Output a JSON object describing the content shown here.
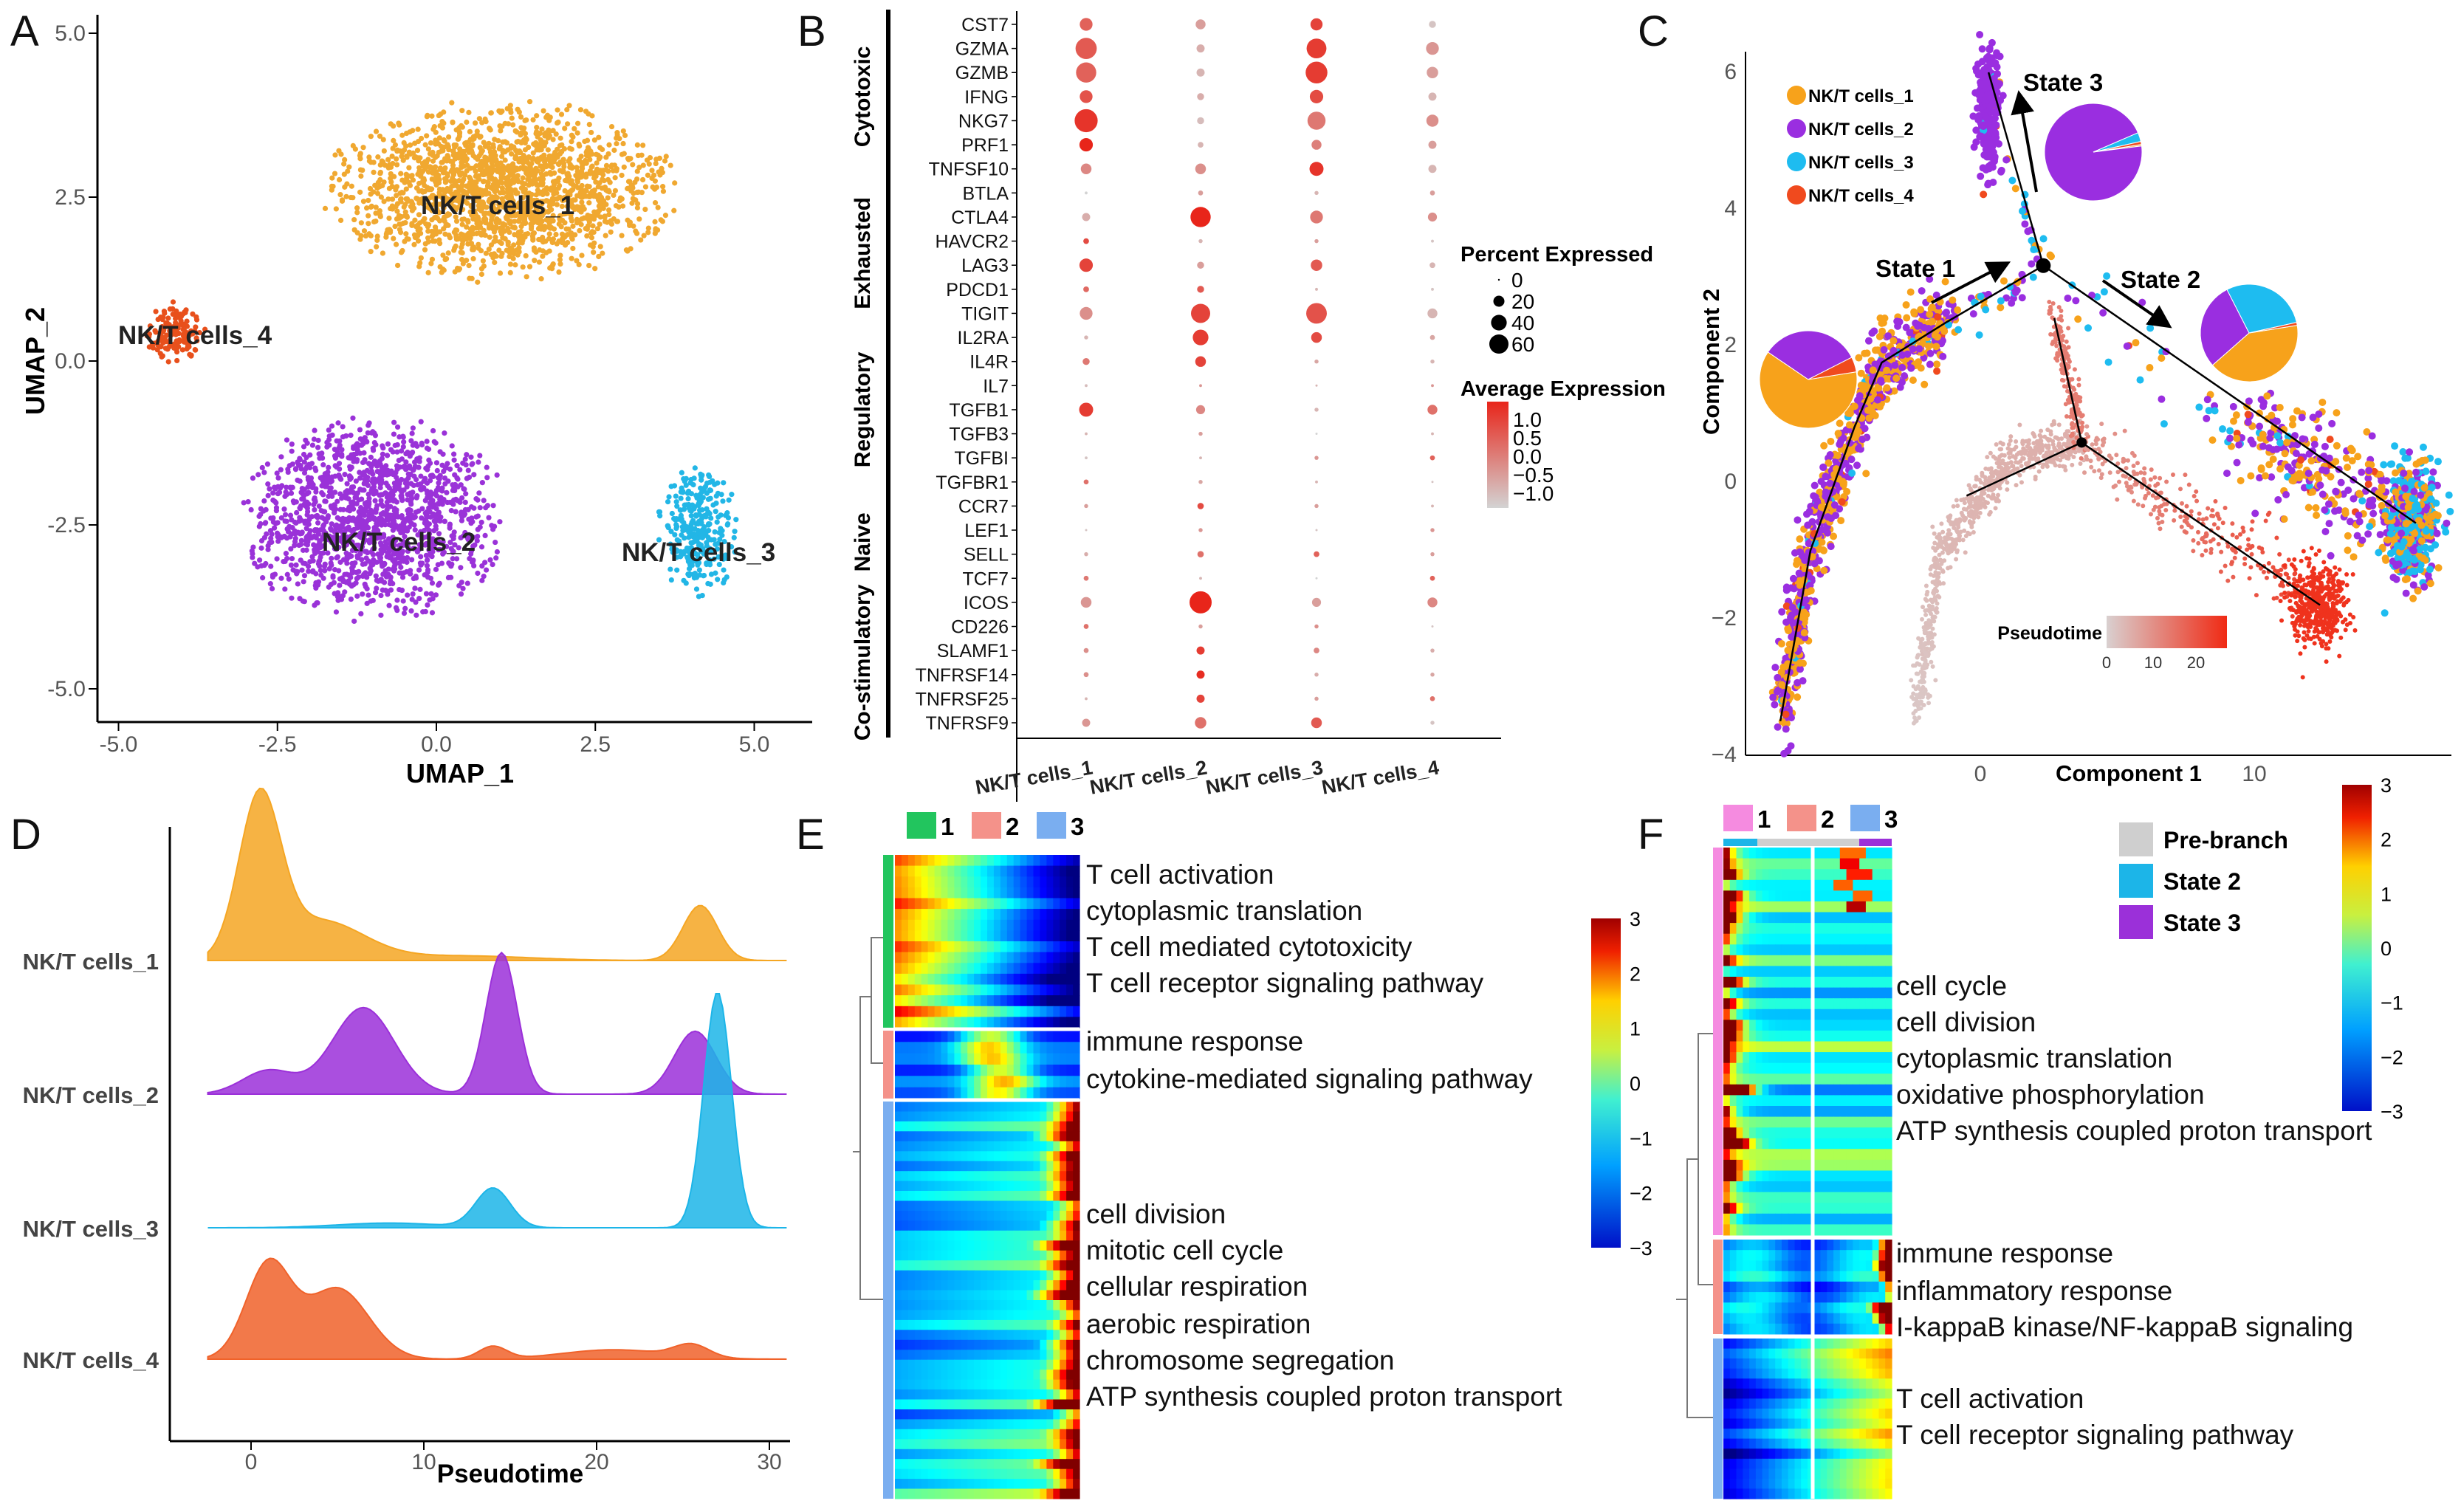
{
  "panel_letters": [
    "A",
    "B",
    "C",
    "D",
    "E",
    "F"
  ],
  "chart_data": [
    {
      "panel": "A",
      "type": "scatter",
      "xlabel": "UMAP_1",
      "ylabel": "UMAP_2",
      "xlim": [
        -5.5,
        5.5
      ],
      "ylim": [
        -5.3,
        5.1
      ],
      "xticks": [
        "-5.0",
        "-2.5",
        "0.0",
        "2.5",
        "5.0"
      ],
      "yticks": [
        "5.0",
        "2.5",
        "0.0",
        "-2.5",
        "-5.0"
      ],
      "clusters": [
        {
          "name": "NK/T cells_1",
          "color": "#f0a830"
        },
        {
          "name": "NK/T cells_2",
          "color": "#9a32d8"
        },
        {
          "name": "NK/T cells_3",
          "color": "#22b6e6"
        },
        {
          "name": "NK/T cells_4",
          "color": "#e8501c"
        }
      ]
    },
    {
      "panel": "B",
      "type": "dot",
      "columns": [
        "NK/T cells_1",
        "NK/T cells_2",
        "NK/T cells_3",
        "NK/T cells_4"
      ],
      "groups": [
        {
          "name": "Cytotoxic",
          "genes": [
            "CST7",
            "GZMA",
            "GZMB",
            "IFNG",
            "NKG7",
            "PRF1",
            "TNFSF10"
          ]
        },
        {
          "name": "Exhausted",
          "genes": [
            "BTLA",
            "CTLA4",
            "HAVCR2",
            "LAG3",
            "PDCD1",
            "TIGIT"
          ]
        },
        {
          "name": "Regulatory",
          "genes": [
            "IL2RA",
            "IL4R",
            "IL7",
            "TGFB1",
            "TGFB3",
            "TGFBI",
            "TGFBR1"
          ]
        },
        {
          "name": "Naive",
          "genes": [
            "CCR7",
            "LEF1",
            "SELL",
            "TCF7"
          ]
        },
        {
          "name": "Co-stimulatory",
          "genes": [
            "ICOS",
            "CD226",
            "SLAMF1",
            "TNFRSF14",
            "TNFRSF25",
            "TNFRSF9"
          ]
        }
      ],
      "percent_expressed": [
        [
          20,
          12,
          18,
          6
        ],
        [
          55,
          8,
          48,
          20
        ],
        [
          50,
          8,
          58,
          16
        ],
        [
          20,
          6,
          22,
          8
        ],
        [
          65,
          6,
          40,
          18
        ],
        [
          22,
          4,
          12,
          8
        ],
        [
          14,
          14,
          24,
          8
        ],
        [
          1,
          3,
          2,
          3
        ],
        [
          8,
          50,
          20,
          10
        ],
        [
          4,
          2,
          2,
          1
        ],
        [
          22,
          6,
          16,
          4
        ],
        [
          4,
          6,
          1,
          1
        ],
        [
          20,
          45,
          52,
          12
        ],
        [
          2,
          30,
          14,
          3
        ],
        [
          6,
          14,
          2,
          2
        ],
        [
          1,
          1,
          0.5,
          1
        ],
        [
          24,
          10,
          2,
          12
        ],
        [
          1,
          2,
          0,
          1
        ],
        [
          1,
          1,
          2,
          3
        ],
        [
          3,
          2,
          1,
          0.5
        ],
        [
          2,
          5,
          2,
          1
        ],
        [
          0.5,
          2,
          0.5,
          2
        ],
        [
          2,
          5,
          4,
          2
        ],
        [
          3,
          1,
          0,
          3
        ],
        [
          14,
          60,
          10,
          12
        ],
        [
          3,
          2,
          2,
          0.5
        ],
        [
          3,
          8,
          4,
          2
        ],
        [
          3,
          8,
          2,
          2
        ],
        [
          1,
          8,
          2,
          3
        ],
        [
          8,
          16,
          14,
          2
        ]
      ],
      "average_expression": [
        [
          0.5,
          -0.3,
          0.9,
          -0.8
        ],
        [
          0.6,
          -0.5,
          1.0,
          -0.2
        ],
        [
          0.5,
          -0.6,
          1.0,
          -0.3
        ],
        [
          0.7,
          -0.5,
          0.8,
          -0.6
        ],
        [
          1.1,
          -0.7,
          0.2,
          -0.1
        ],
        [
          1.3,
          -0.6,
          0.1,
          -0.3
        ],
        [
          0.0,
          -0.1,
          1.1,
          -0.6
        ],
        [
          -1,
          -0.3,
          -0.6,
          -0.3
        ],
        [
          -0.5,
          1.3,
          0.2,
          -0.1
        ],
        [
          0.8,
          -0.6,
          -0.3,
          -0.8
        ],
        [
          0.9,
          -0.3,
          0.6,
          -0.6
        ],
        [
          0.4,
          0.6,
          -0.6,
          -0.8
        ],
        [
          -0.1,
          0.9,
          0.7,
          -0.6
        ],
        [
          -0.6,
          1.0,
          0.8,
          -0.4
        ],
        [
          0.2,
          0.9,
          -0.4,
          -0.6
        ],
        [
          -0.7,
          -0.2,
          -0.6,
          -0.2
        ],
        [
          1.0,
          0.0,
          -0.6,
          0.3
        ],
        [
          -0.6,
          -0.3,
          -1,
          -0.6
        ],
        [
          -0.8,
          -0.6,
          -0.2,
          0.5
        ],
        [
          0.3,
          -0.4,
          -0.6,
          -0.8
        ],
        [
          -0.3,
          0.8,
          -0.3,
          -0.6
        ],
        [
          -0.8,
          -0.2,
          -0.8,
          -0.2
        ],
        [
          -0.5,
          0.3,
          0.5,
          -0.3
        ],
        [
          0.2,
          -0.6,
          -1,
          0.5
        ],
        [
          -0.2,
          1.3,
          -0.3,
          0.0
        ],
        [
          0.3,
          -0.3,
          -0.1,
          -0.8
        ],
        [
          -0.1,
          1.0,
          0.0,
          -0.5
        ],
        [
          -0.1,
          1.2,
          -0.5,
          -0.4
        ],
        [
          -0.6,
          0.9,
          -0.3,
          0.3
        ],
        [
          -0.2,
          0.3,
          0.6,
          -0.8
        ]
      ],
      "size_legend": {
        "title": "Percent Expressed",
        "values": [
          "0",
          "20",
          "40",
          "60"
        ]
      },
      "color_legend": {
        "title": "Average Expression",
        "labels": [
          "1.0",
          "0.5",
          "0.0",
          "−0.5",
          "−1.0"
        ],
        "low": "#d3d3d3",
        "high": "#e8251a"
      }
    },
    {
      "panel": "C",
      "type": "scatter",
      "xlabel": "Component 1",
      "ylabel": "Component 2",
      "xticks": [
        "0",
        "10"
      ],
      "yticks": [
        "6",
        "4",
        "2",
        "0",
        "−2",
        "−4"
      ],
      "legend": [
        {
          "name": "NK/T cells_1",
          "color": "#f7a21b"
        },
        {
          "name": "NK/T cells_2",
          "color": "#9a2ee0"
        },
        {
          "name": "NK/T cells_3",
          "color": "#1ebcf0"
        },
        {
          "name": "NK/T cells_4",
          "color": "#f04a1e"
        }
      ],
      "states": [
        {
          "name": "State 1",
          "pie": [
            62,
            33,
            0,
            5
          ]
        },
        {
          "name": "State 2",
          "pie": [
            41,
            29,
            29,
            1
          ]
        },
        {
          "name": "State 3",
          "pie": [
            0.5,
            95.5,
            3,
            1
          ]
        }
      ],
      "pseudotime_legend": {
        "title": "Pseudotime",
        "ticks": [
          "0",
          "10",
          "20"
        ],
        "low": "#d9d0d0",
        "high": "#f02a14"
      }
    },
    {
      "panel": "D",
      "type": "area",
      "xlabel": "Pseudotime",
      "xticks": [
        "0",
        "10",
        "20",
        "30"
      ],
      "xlim": [
        -2.5,
        31
      ],
      "series": [
        {
          "name": "NK/T cells_1",
          "color": "#f5a623",
          "peaks": [
            [
              0.5,
              1.0,
              1.2
            ],
            [
              4,
              0.25,
              2.5
            ],
            [
              12,
              0.03,
              4
            ],
            [
              26,
              0.35,
              1.0
            ]
          ]
        },
        {
          "name": "NK/T cells_2",
          "color": "#9b30d9",
          "peaks": [
            [
              1,
              0.15,
              1.5
            ],
            [
              6.5,
              0.55,
              1.8
            ],
            [
              14.5,
              0.9,
              0.9
            ],
            [
              25.7,
              0.4,
              1.2
            ]
          ]
        },
        {
          "name": "NK/T cells_3",
          "color": "#1cb5e8",
          "peaks": [
            [
              14,
              0.25,
              1.0
            ],
            [
              27,
              1.5,
              0.8
            ],
            [
              8,
              0.03,
              3
            ]
          ]
        },
        {
          "name": "NK/T cells_4",
          "color": "#f0622a",
          "peaks": [
            [
              1,
              0.6,
              1.3
            ],
            [
              5,
              0.45,
              1.8
            ],
            [
              14,
              0.08,
              0.8
            ],
            [
              21,
              0.06,
              3
            ],
            [
              25.5,
              0.08,
              1
            ]
          ]
        }
      ]
    },
    {
      "panel": "E",
      "type": "heatmap",
      "cluster_legend": [
        {
          "label": "1",
          "color": "#22c55e"
        },
        {
          "label": "2",
          "color": "#f4928a"
        },
        {
          "label": "3",
          "color": "#7aaef0"
        }
      ],
      "colorbar": [
        "3",
        "2",
        "1",
        "0",
        "−1",
        "−2",
        "−3"
      ],
      "terms": [
        [
          "T cell activation",
          "cytoplasmic translation",
          "T cell mediated cytotoxicity",
          "T cell receptor signaling pathway"
        ],
        [
          "immune response",
          "cytokine-mediated signaling pathway"
        ],
        [
          "cell division",
          "mitotic cell cycle",
          "cellular respiration",
          "aerobic respiration",
          "chromosome segregation",
          "ATP synthesis coupled proton transport"
        ]
      ]
    },
    {
      "panel": "F",
      "type": "heatmap",
      "cluster_legend": [
        {
          "label": "1",
          "color": "#f58be0"
        },
        {
          "label": "2",
          "color": "#f4928a"
        },
        {
          "label": "3",
          "color": "#7aaef0"
        }
      ],
      "branch_legend": [
        {
          "label": "Pre-branch",
          "color": "#cfcfcf"
        },
        {
          "label": "State 2",
          "color": "#1cb5e8"
        },
        {
          "label": "State 3",
          "color": "#9b30d9"
        }
      ],
      "colorbar": [
        "3",
        "2",
        "1",
        "0",
        "−1",
        "−2",
        "−3"
      ],
      "terms": [
        [
          "cell cycle",
          "cell division",
          "cytoplasmic translation",
          "oxidative phosphorylation",
          "ATP synthesis coupled proton transport"
        ],
        [
          "immune response",
          "inflammatory response",
          "I-kappaB kinase/NF-kappaB signaling"
        ],
        [
          "T cell activation",
          "T cell receptor signaling pathway"
        ]
      ]
    }
  ]
}
